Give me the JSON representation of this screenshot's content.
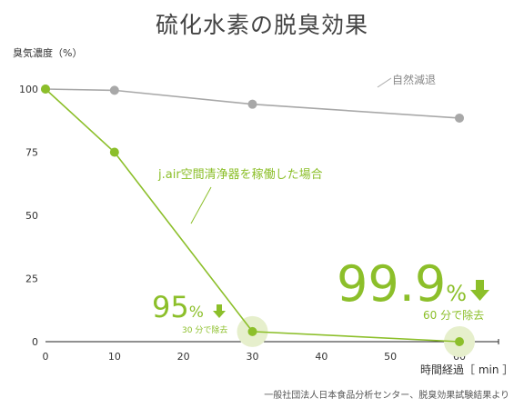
{
  "source_note": "一般社団法人日本食品分析センター、脱臭効果試験結果より",
  "chart_data": {
    "type": "line",
    "title": "硫化水素の脱臭効果",
    "ylabel": "臭気濃度（%）",
    "xlabel": "時間経過［ min ］",
    "x_ticks": [
      0,
      10,
      20,
      30,
      40,
      50,
      60
    ],
    "y_ticks": [
      0,
      25,
      50,
      75,
      100
    ],
    "xlim": [
      0,
      66
    ],
    "ylim": [
      0,
      112
    ],
    "grid": false,
    "series": [
      {
        "name": "自然減退",
        "color": "#a8a8a8",
        "x": [
          0,
          10,
          30,
          60
        ],
        "y": [
          100,
          99.5,
          94,
          88.5
        ]
      },
      {
        "name": "j.air空間清浄器を稼働した場合",
        "color": "#8cbf2a",
        "x": [
          0,
          10,
          30,
          60
        ],
        "y": [
          100,
          75,
          4,
          0
        ]
      }
    ],
    "annotations": [
      {
        "value": "95",
        "unit": "%",
        "caption": "30 分で除去"
      },
      {
        "value": "99.9",
        "unit": "%",
        "caption": "60 分で除去"
      }
    ]
  }
}
